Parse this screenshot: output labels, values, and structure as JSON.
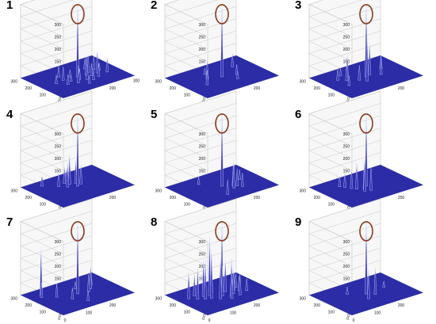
{
  "chart_data": [
    {
      "type": "surface3d",
      "label": "1",
      "zlim": [
        0,
        300
      ],
      "zticks": [
        "0",
        "50",
        "100",
        "150",
        "200",
        "250",
        "300"
      ],
      "xticks": [
        "0",
        "100",
        "200",
        "300"
      ],
      "yticks": [
        "0",
        "100",
        "200",
        "300"
      ],
      "peaks": [
        [
          150,
          150,
          290
        ],
        [
          85,
          110,
          40
        ],
        [
          95,
          160,
          55
        ],
        [
          110,
          130,
          25
        ],
        [
          120,
          95,
          70
        ],
        [
          130,
          170,
          30
        ],
        [
          140,
          120,
          45
        ],
        [
          160,
          100,
          60
        ],
        [
          170,
          180,
          35
        ],
        [
          180,
          140,
          80
        ],
        [
          190,
          120,
          50
        ],
        [
          200,
          160,
          75
        ],
        [
          210,
          200,
          40
        ],
        [
          220,
          130,
          90
        ],
        [
          230,
          170,
          55
        ],
        [
          240,
          150,
          30
        ],
        [
          100,
          200,
          45
        ],
        [
          60,
          150,
          35
        ],
        [
          250,
          110,
          60
        ],
        [
          175,
          80,
          40
        ],
        [
          205,
          95,
          50
        ],
        [
          145,
          60,
          30
        ]
      ]
    },
    {
      "type": "surface3d",
      "label": "2",
      "zlim": [
        0,
        300
      ],
      "zticks": [
        "0",
        "50",
        "100",
        "150",
        "200",
        "250",
        "300"
      ],
      "xticks": [
        "0",
        "100",
        "200"
      ],
      "yticks": [
        "0",
        "100",
        "200",
        "300"
      ],
      "peaks": [
        [
          150,
          150,
          290
        ],
        [
          70,
          120,
          60
        ],
        [
          100,
          170,
          80
        ],
        [
          200,
          130,
          40
        ],
        [
          230,
          210,
          55
        ],
        [
          180,
          90,
          30
        ],
        [
          120,
          220,
          25
        ]
      ]
    },
    {
      "type": "surface3d",
      "label": "3",
      "zlim": [
        0,
        300
      ],
      "zticks": [
        "0",
        "50",
        "100",
        "150",
        "200",
        "250",
        "300"
      ],
      "xticks": [
        "0",
        "100",
        "200"
      ],
      "yticks": [
        "0",
        "100",
        "200",
        "300"
      ],
      "peaks": [
        [
          150,
          150,
          290
        ],
        [
          60,
          120,
          40
        ],
        [
          80,
          170,
          70
        ],
        [
          100,
          200,
          90
        ],
        [
          115,
          140,
          60
        ],
        [
          130,
          110,
          170
        ],
        [
          170,
          160,
          130
        ],
        [
          200,
          130,
          75
        ],
        [
          230,
          180,
          50
        ],
        [
          90,
          230,
          30
        ],
        [
          60,
          200,
          45
        ]
      ]
    },
    {
      "type": "surface3d",
      "label": "4",
      "zlim": [
        0,
        300
      ],
      "zticks": [
        "0",
        "50",
        "100",
        "150",
        "200",
        "250",
        "300"
      ],
      "xticks": [
        "0",
        "100",
        "200"
      ],
      "yticks": [
        "0",
        "100",
        "200",
        "300"
      ],
      "peaks": [
        [
          150,
          150,
          290
        ],
        [
          120,
          170,
          100
        ],
        [
          140,
          190,
          120
        ],
        [
          160,
          180,
          95
        ],
        [
          170,
          160,
          80
        ],
        [
          130,
          210,
          70
        ],
        [
          100,
          200,
          60
        ],
        [
          180,
          200,
          55
        ],
        [
          60,
          250,
          45
        ],
        [
          150,
          230,
          50
        ]
      ]
    },
    {
      "type": "surface3d",
      "label": "5",
      "zlim": [
        0,
        300
      ],
      "zticks": [
        "0",
        "50",
        "100",
        "150",
        "200",
        "250",
        "300"
      ],
      "xticks": [
        "0",
        "100",
        "200"
      ],
      "yticks": [
        "0",
        "100",
        "200",
        "300"
      ],
      "peaks": [
        [
          150,
          150,
          290
        ],
        [
          120,
          60,
          60
        ],
        [
          170,
          100,
          110
        ],
        [
          180,
          120,
          90
        ],
        [
          190,
          110,
          70
        ],
        [
          200,
          90,
          55
        ],
        [
          230,
          160,
          40
        ],
        [
          100,
          230,
          30
        ]
      ]
    },
    {
      "type": "surface3d",
      "label": "6",
      "zlim": [
        0,
        300
      ],
      "zticks": [
        "0",
        "50",
        "100",
        "150",
        "200",
        "250",
        "300"
      ],
      "xticks": [
        "0",
        "100",
        "200"
      ],
      "yticks": [
        "0",
        "100",
        "200",
        "300"
      ],
      "peaks": [
        [
          150,
          150,
          290
        ],
        [
          120,
          110,
          130
        ],
        [
          130,
          130,
          120
        ],
        [
          110,
          150,
          110
        ],
        [
          140,
          100,
          95
        ],
        [
          100,
          170,
          80
        ],
        [
          90,
          200,
          60
        ],
        [
          80,
          220,
          45
        ]
      ]
    },
    {
      "type": "surface3d",
      "label": "7",
      "zlim": [
        0,
        300
      ],
      "zticks": [
        "0",
        "50",
        "100",
        "150",
        "200",
        "250",
        "300"
      ],
      "xticks": [
        "0",
        "100",
        "200"
      ],
      "yticks": [
        "0",
        "100",
        "200",
        "300"
      ],
      "peaks": [
        [
          150,
          150,
          290
        ],
        [
          40,
          220,
          60
        ],
        [
          50,
          240,
          190
        ],
        [
          80,
          180,
          55
        ],
        [
          110,
          120,
          45
        ],
        [
          190,
          140,
          70
        ],
        [
          210,
          160,
          95
        ],
        [
          230,
          190,
          55
        ],
        [
          140,
          60,
          40
        ],
        [
          170,
          200,
          30
        ]
      ]
    },
    {
      "type": "surface3d",
      "label": "8",
      "zlim": [
        0,
        300
      ],
      "zticks": [
        "0",
        "50",
        "100",
        "150",
        "200",
        "250",
        "300"
      ],
      "xticks": [
        "0",
        "100",
        "200"
      ],
      "yticks": [
        "0",
        "100",
        "200",
        "300"
      ],
      "peaks": [
        [
          150,
          150,
          290
        ],
        [
          40,
          200,
          110
        ],
        [
          60,
          170,
          130
        ],
        [
          80,
          150,
          160
        ],
        [
          90,
          180,
          150
        ],
        [
          100,
          140,
          200
        ],
        [
          110,
          170,
          240
        ],
        [
          120,
          110,
          170
        ],
        [
          130,
          190,
          140
        ],
        [
          140,
          130,
          120
        ],
        [
          160,
          100,
          155
        ],
        [
          170,
          160,
          130
        ],
        [
          180,
          120,
          100
        ],
        [
          190,
          90,
          85
        ],
        [
          200,
          150,
          70
        ],
        [
          210,
          130,
          60
        ],
        [
          220,
          170,
          55
        ],
        [
          230,
          110,
          50
        ],
        [
          70,
          210,
          90
        ],
        [
          150,
          80,
          80
        ]
      ]
    },
    {
      "type": "surface3d",
      "label": "9",
      "zlim": [
        0,
        300
      ],
      "zticks": [
        "0",
        "50",
        "100",
        "150",
        "200",
        "250",
        "300"
      ],
      "xticks": [
        "0",
        "100",
        "200"
      ],
      "yticks": [
        "0",
        "100",
        "200",
        "300"
      ],
      "peaks": [
        [
          150,
          150,
          290
        ],
        [
          130,
          100,
          120
        ],
        [
          170,
          120,
          110
        ],
        [
          100,
          200,
          30
        ],
        [
          230,
          160,
          25
        ]
      ]
    }
  ],
  "colors": {
    "floor": "#2b2ca6",
    "spike": "#3a37b8",
    "spike_tip": "#d9e4ff",
    "marker": "#8a3a1e",
    "grid": "#c8c8c8",
    "pane": "#f7f7f7"
  }
}
